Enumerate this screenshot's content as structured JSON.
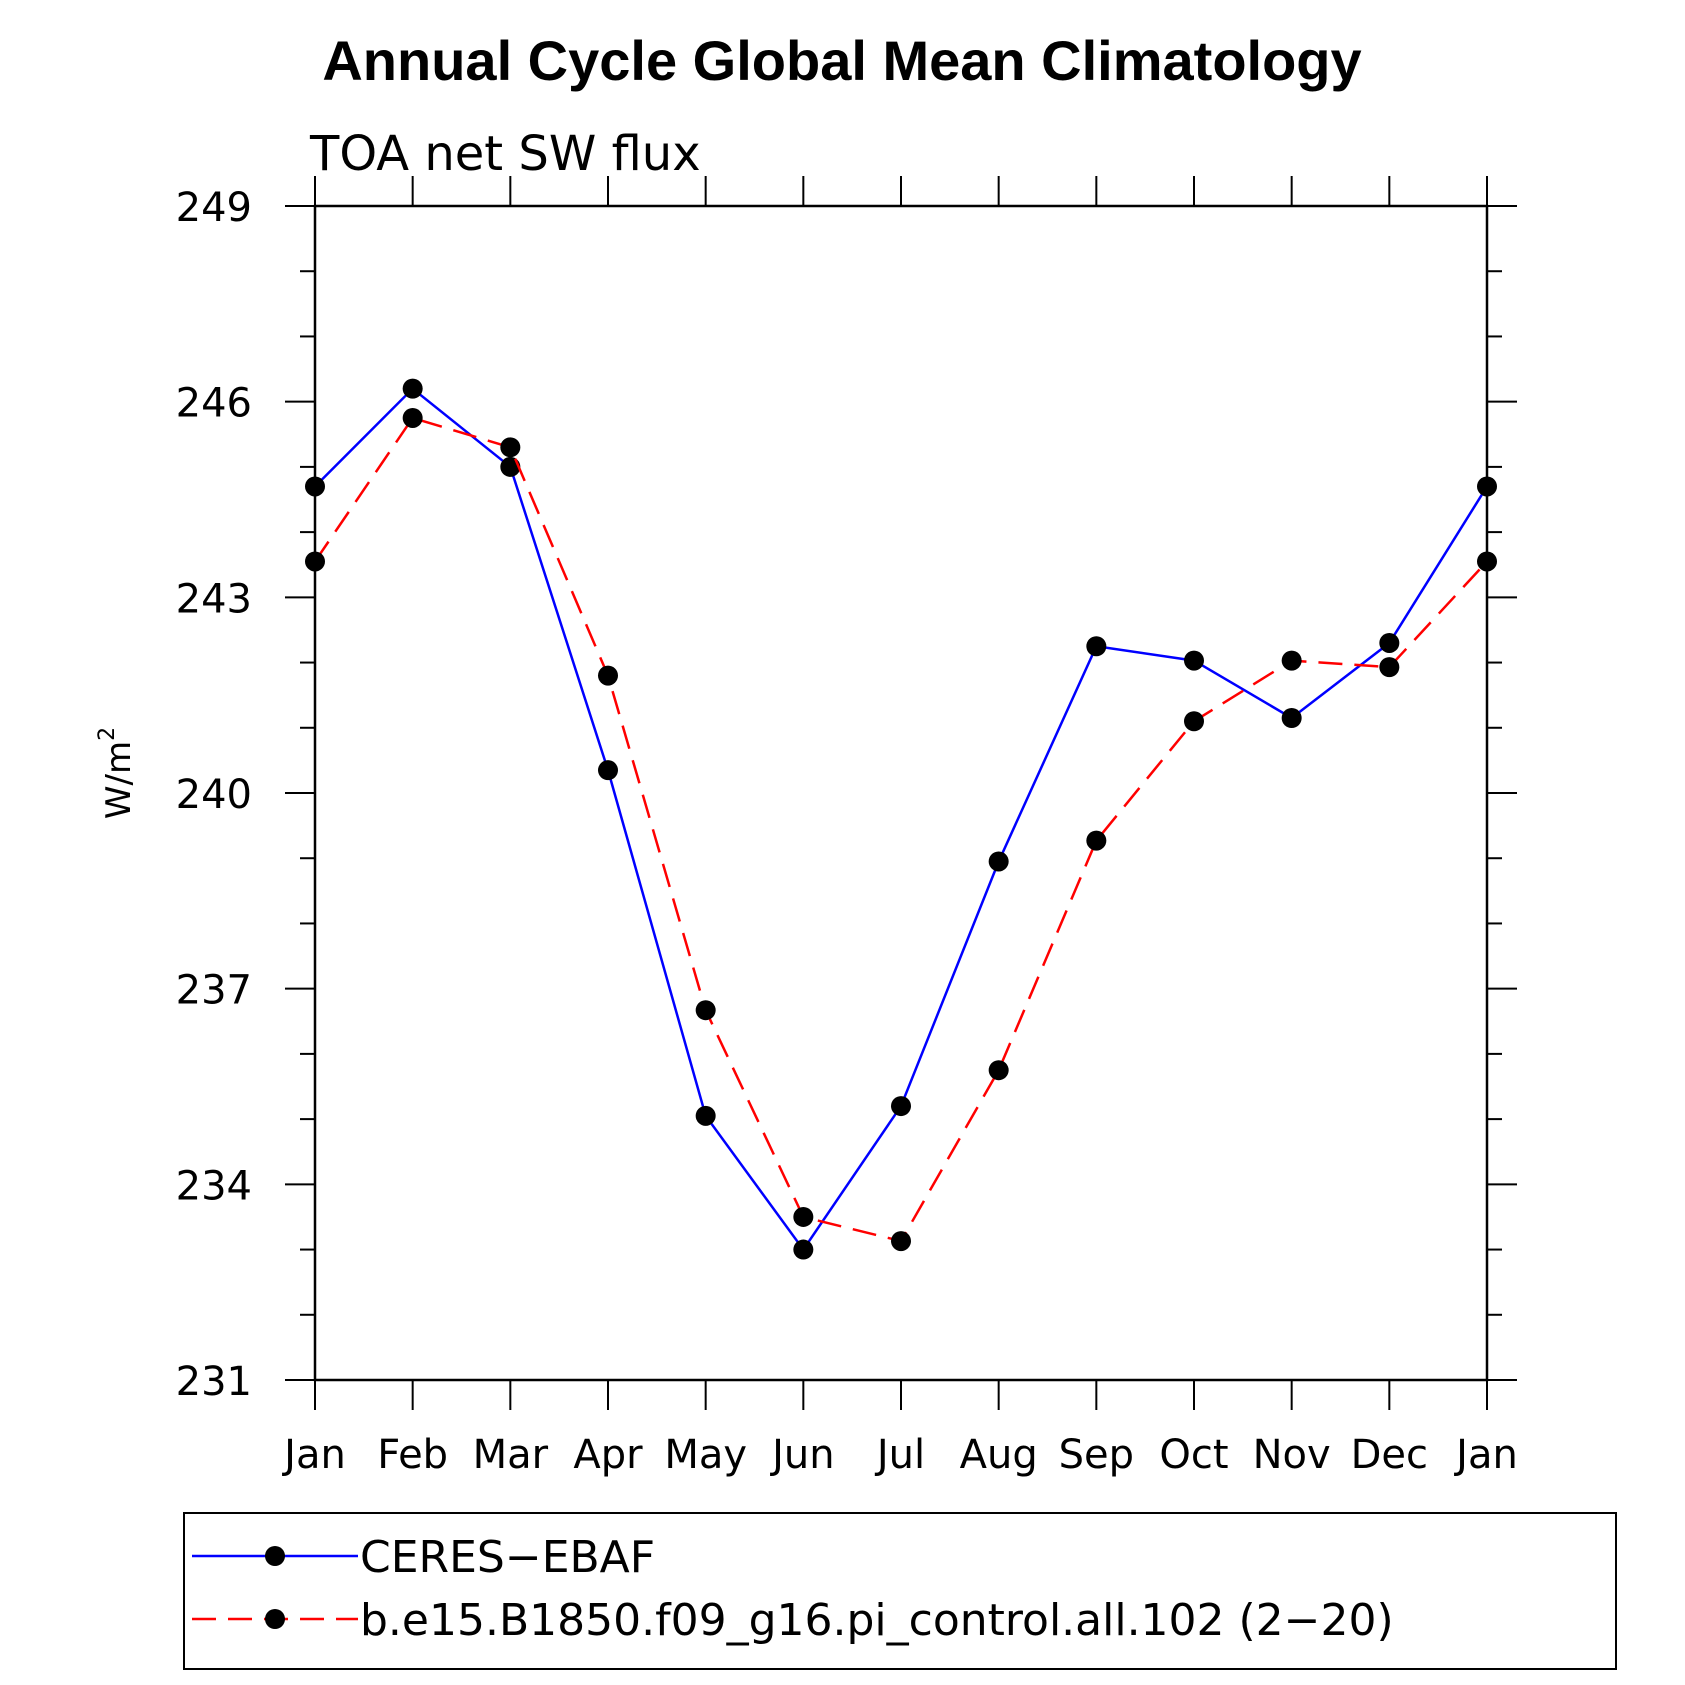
{
  "chart_data": {
    "type": "line",
    "title": "Annual Cycle Global Mean Climatology",
    "subtitle": "TOA net SW flux",
    "ylabel": "W/m",
    "ylabel_sup": "2",
    "xlabel": "",
    "categories": [
      "Jan",
      "Feb",
      "Mar",
      "Apr",
      "May",
      "Jun",
      "Jul",
      "Aug",
      "Sep",
      "Oct",
      "Nov",
      "Dec",
      "Jan"
    ],
    "ylim": [
      231,
      249
    ],
    "yticks": [
      231,
      234,
      237,
      240,
      243,
      246,
      249
    ],
    "grid": false,
    "legend_position": "bottom",
    "series": [
      {
        "name": "CERES−EBAF",
        "color": "#0000ff",
        "style": "solid",
        "values": [
          244.7,
          246.2,
          245.0,
          240.35,
          235.05,
          233.0,
          235.2,
          238.95,
          242.25,
          242.03,
          241.15,
          242.3,
          244.7
        ]
      },
      {
        "name": "b.e15.B1850.f09_g16.pi_control.all.102 (2−20)",
        "color": "#ff0000",
        "style": "dashed",
        "values": [
          243.55,
          245.75,
          245.3,
          241.8,
          236.67,
          233.5,
          233.13,
          235.75,
          239.27,
          241.1,
          242.03,
          241.93,
          243.55
        ]
      }
    ]
  }
}
